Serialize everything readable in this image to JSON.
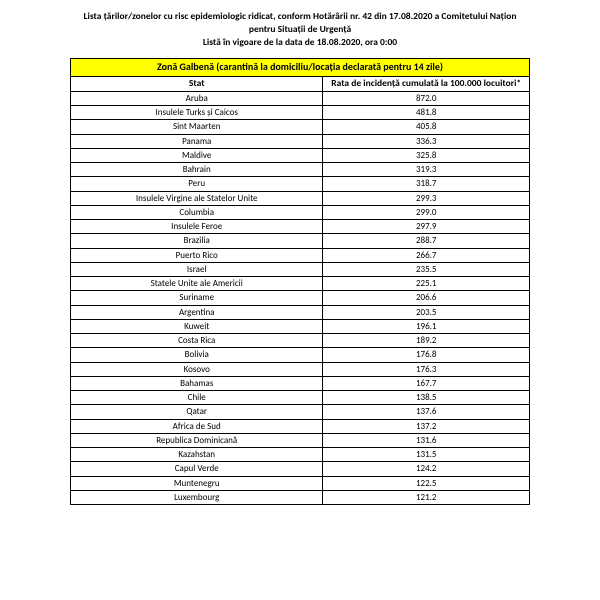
{
  "header": {
    "line1": "Lista țărilor/zonelor cu risc epidemiologic ridicat, conform Hotărârii nr. 42 din 17.08.2020 a Comitetului Națion",
    "line2": "pentru Situații de Urgență",
    "line3": "Listă în vigoare de la data de 18.08.2020, ora 0:00"
  },
  "table": {
    "zone_header": "Zonă Galbenă (carantină la domiciliu/locația declarată pentru 14 zile)",
    "columns": {
      "stat": "Stat",
      "rate": "Rata de incidență cumulată la 100.000 locuitori*"
    },
    "rows": [
      {
        "stat": "Aruba",
        "rate": "872.0"
      },
      {
        "stat": "Insulele Turks și Caicos",
        "rate": "481.8"
      },
      {
        "stat": "Sint Maarten",
        "rate": "405.8"
      },
      {
        "stat": "Panama",
        "rate": "336.3"
      },
      {
        "stat": "Maldive",
        "rate": "325.8"
      },
      {
        "stat": "Bahrain",
        "rate": "319.3"
      },
      {
        "stat": "Peru",
        "rate": "318.7"
      },
      {
        "stat": "Insulele Virgine ale Statelor Unite",
        "rate": "299.3"
      },
      {
        "stat": "Columbia",
        "rate": "299.0"
      },
      {
        "stat": "Insulele Feroe",
        "rate": "297.9"
      },
      {
        "stat": "Brazilia",
        "rate": "288.7"
      },
      {
        "stat": "Puerto Rico",
        "rate": "266.7"
      },
      {
        "stat": "Israel",
        "rate": "235.5"
      },
      {
        "stat": "Statele Unite ale Americii",
        "rate": "225.1"
      },
      {
        "stat": "Suriname",
        "rate": "206.6"
      },
      {
        "stat": "Argentina",
        "rate": "203.5"
      },
      {
        "stat": "Kuweit",
        "rate": "196.1"
      },
      {
        "stat": "Costa Rica",
        "rate": "189.2"
      },
      {
        "stat": "Bolivia",
        "rate": "176.8"
      },
      {
        "stat": "Kosovo",
        "rate": "176.3"
      },
      {
        "stat": "Bahamas",
        "rate": "167.7"
      },
      {
        "stat": "Chile",
        "rate": "138.5"
      },
      {
        "stat": "Qatar",
        "rate": "137.6"
      },
      {
        "stat": "Africa de Sud",
        "rate": "137.2"
      },
      {
        "stat": "Republica Dominicană",
        "rate": "131.6"
      },
      {
        "stat": "Kazahstan",
        "rate": "131.5"
      },
      {
        "stat": "Capul Verde",
        "rate": "124.2"
      },
      {
        "stat": "Muntenegru",
        "rate": "122.5"
      },
      {
        "stat": "Luxembourg",
        "rate": "121.2"
      }
    ]
  },
  "styling": {
    "zone_bg": "#ffff00",
    "border_color": "#000000",
    "font_family": "Calibri",
    "body_bg": "#ffffff"
  }
}
